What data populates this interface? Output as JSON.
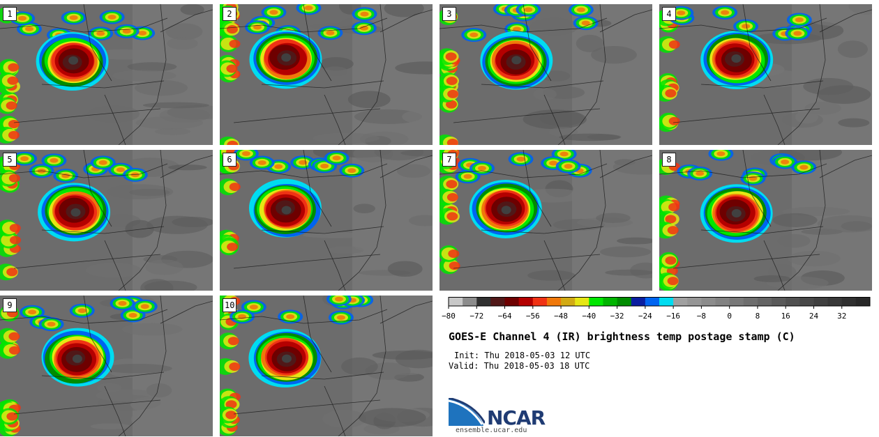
{
  "chart_data": {
    "type": "heatmap",
    "title": "GOES-E Channel 4 (IR) brightness temp postage stamp (C)",
    "init": "Init: Thu 2018-05-03 12 UTC",
    "valid": "Valid: Thu 2018-05-03 18 UTC",
    "panels": [
      "1",
      "2",
      "3",
      "4",
      "5",
      "6",
      "7",
      "8",
      "9",
      "10"
    ],
    "colorbar": {
      "min": -80,
      "max": 40,
      "step": 4,
      "tick_labels": [
        "−80",
        "−72",
        "−64",
        "−56",
        "−48",
        "−40",
        "−32",
        "−24",
        "−16",
        "−8",
        "0",
        "8",
        "16",
        "24",
        "32"
      ],
      "tick_values": [
        -80,
        -72,
        -64,
        -56,
        -48,
        -40,
        -32,
        -24,
        -16,
        -8,
        0,
        8,
        16,
        24,
        32
      ],
      "colors": [
        "#c8c8c8",
        "#8c8c8c",
        "#303030",
        "#501818",
        "#6e0000",
        "#b40000",
        "#f03214",
        "#f0780a",
        "#d2aa14",
        "#e6e614",
        "#00e600",
        "#00b400",
        "#008c00",
        "#0a1ea0",
        "#0064f0",
        "#00dcf0",
        "#a0a0a0",
        "#969696",
        "#8c8c8c",
        "#828282",
        "#787878",
        "#6e6e6e",
        "#646464",
        "#5a5a5a",
        "#505050",
        "#484848",
        "#404040",
        "#383838",
        "#303030",
        "#282828"
      ]
    }
  },
  "branding": {
    "logo_text": "NCAR",
    "website": "ensemble.ucar.edu"
  }
}
